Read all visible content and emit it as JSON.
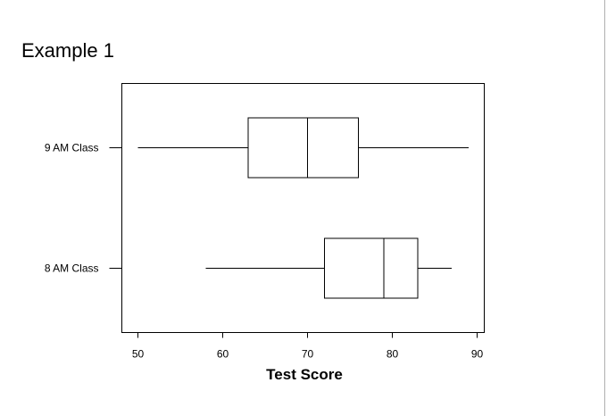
{
  "slide": {
    "title": "Example 1"
  },
  "chart_data": {
    "type": "boxplot",
    "orientation": "horizontal",
    "xlabel": "Test Score",
    "xlim": [
      48.5,
      90.5
    ],
    "xticks": [
      50,
      60,
      70,
      80,
      90
    ],
    "categories": [
      "9 AM Class",
      "8 AM Class"
    ],
    "series": [
      {
        "name": "9 AM Class",
        "min": 50,
        "q1": 63,
        "median": 70,
        "q3": 76,
        "max": 89
      },
      {
        "name": "8 AM Class",
        "min": 58,
        "q1": 72,
        "median": 79,
        "q3": 83,
        "max": 87
      }
    ],
    "grid": false,
    "legend": "none"
  }
}
